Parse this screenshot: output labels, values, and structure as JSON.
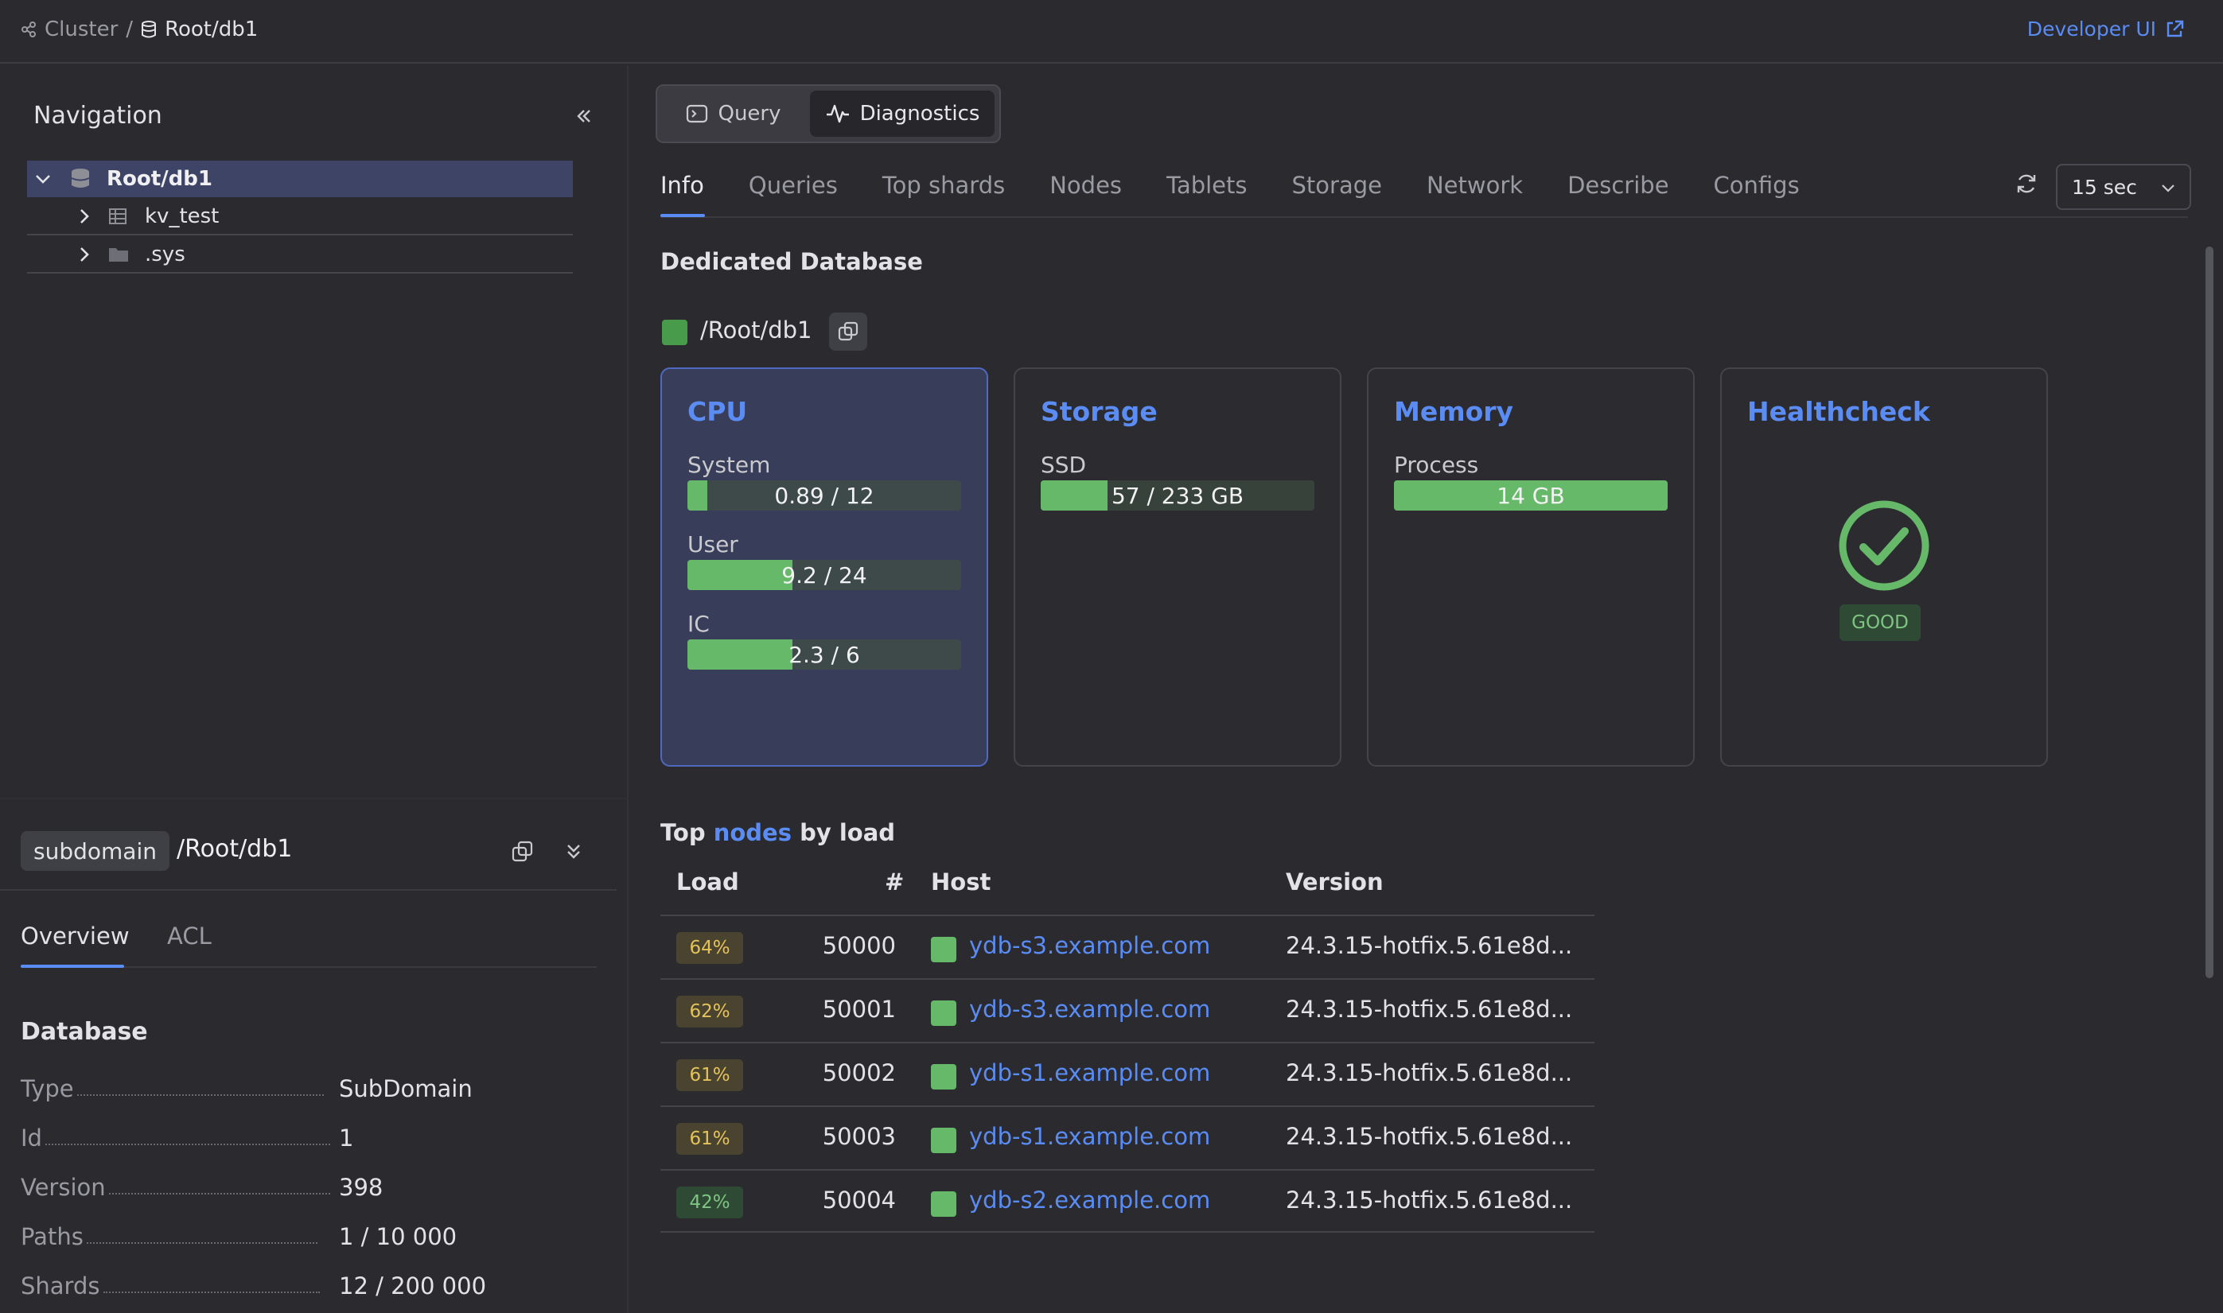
{
  "header": {
    "breadcrumb": [
      "Cluster",
      "Root/db1"
    ],
    "breadcrumb_sep": "/",
    "developer_ui": "Developer UI"
  },
  "navigation": {
    "title": "Navigation",
    "tree": [
      {
        "label": "Root/db1",
        "icon": "database-icon",
        "expanded": true
      },
      {
        "label": "kv_test",
        "icon": "table-icon",
        "expanded": false
      },
      {
        "label": ".sys",
        "icon": "folder-icon",
        "expanded": false
      }
    ]
  },
  "summary": {
    "type_badge": "subdomain",
    "path": "/Root/db1",
    "tabs": [
      "Overview",
      "ACL"
    ],
    "section_title": "Database",
    "props": [
      {
        "k": "Type",
        "v": "SubDomain"
      },
      {
        "k": "Id",
        "v": "1"
      },
      {
        "k": "Version",
        "v": "398"
      },
      {
        "k": "Paths",
        "v": "1 / 10 000"
      },
      {
        "k": "Shards",
        "v": "12 / 200 000"
      }
    ]
  },
  "mode": {
    "query": "Query",
    "diagnostics": "Diagnostics",
    "active": "Diagnostics"
  },
  "tabs": [
    "Info",
    "Queries",
    "Top shards",
    "Nodes",
    "Tablets",
    "Storage",
    "Network",
    "Describe",
    "Configs"
  ],
  "active_tab": "Info",
  "refresh_interval": "15 sec",
  "info": {
    "title": "Dedicated Database",
    "path": "/Root/db1",
    "status_color": "#4caf50",
    "cards": {
      "cpu": {
        "title": "CPU",
        "bars": [
          {
            "label": "System",
            "text": "0.89 / 12",
            "fraction": 0.074
          },
          {
            "label": "User",
            "text": "9.2 / 24",
            "fraction": 0.383
          },
          {
            "label": "IC",
            "text": "2.3 / 6",
            "fraction": 0.383
          }
        ]
      },
      "storage": {
        "title": "Storage",
        "bars": [
          {
            "label": "SSD",
            "text": "57 / 233 GB",
            "fraction": 0.245
          }
        ]
      },
      "memory": {
        "title": "Memory",
        "bars": [
          {
            "label": "Process",
            "text": "14 GB",
            "fraction": 1.0
          }
        ]
      },
      "healthcheck": {
        "title": "Healthcheck",
        "status": "GOOD"
      }
    }
  },
  "top_nodes": {
    "title_prefix": "Top",
    "title_link": "nodes",
    "title_suffix": "by load",
    "columns": [
      "Load",
      "#",
      "Host",
      "Version"
    ],
    "rows": [
      {
        "load": "64%",
        "level": "warn",
        "id": "50000",
        "host": "ydb-s3.example.com",
        "version": "24.3.15-hotfix.5.61e8d..."
      },
      {
        "load": "62%",
        "level": "warn",
        "id": "50001",
        "host": "ydb-s3.example.com",
        "version": "24.3.15-hotfix.5.61e8d..."
      },
      {
        "load": "61%",
        "level": "warn",
        "id": "50002",
        "host": "ydb-s1.example.com",
        "version": "24.3.15-hotfix.5.61e8d..."
      },
      {
        "load": "61%",
        "level": "warn",
        "id": "50003",
        "host": "ydb-s1.example.com",
        "version": "24.3.15-hotfix.5.61e8d..."
      },
      {
        "load": "42%",
        "level": "ok",
        "id": "50004",
        "host": "ydb-s2.example.com",
        "version": "24.3.15-hotfix.5.61e8d..."
      }
    ]
  },
  "colors": {
    "accent": "#5b8cf3",
    "good": "#67b96a",
    "warn": "#e3c35a"
  }
}
